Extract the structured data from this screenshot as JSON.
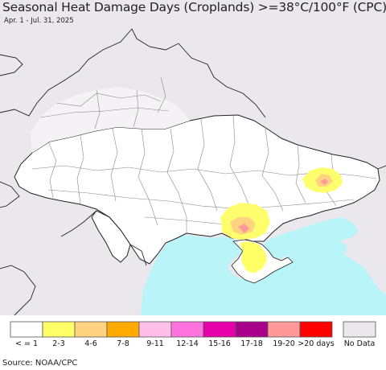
{
  "title": "Seasonal Heat Damage Days (Croplands) >=38°C/100°F (CPC)",
  "subtitle": "Apr. 1 - Jul. 31, 2025",
  "source": "Source: NOAA/CPC",
  "colors": {
    "sea": "#b8f4f8",
    "no_data_land": "#ebe8ed",
    "cropland": "#ffffff",
    "border": "#222222",
    "admin_border": "#888888"
  },
  "legend": [
    {
      "label": "< = 1",
      "color": "#ffffff"
    },
    {
      "label": "2-3",
      "color": "#ffff66"
    },
    {
      "label": "4-6",
      "color": "#ffd37f"
    },
    {
      "label": "7-8",
      "color": "#ffaa00"
    },
    {
      "label": "9-11",
      "color": "#ffbfe8"
    },
    {
      "label": "12-14",
      "color": "#ff73df"
    },
    {
      "label": "15-16",
      "color": "#e600a9"
    },
    {
      "label": "17-18",
      "color": "#a8008a"
    },
    {
      "label": "19-20",
      "color": "#ff9999"
    },
    {
      "label": ">20 days",
      "color": "#ff0000"
    },
    {
      "label": "No Data",
      "color": "#ebe8ed"
    }
  ]
}
